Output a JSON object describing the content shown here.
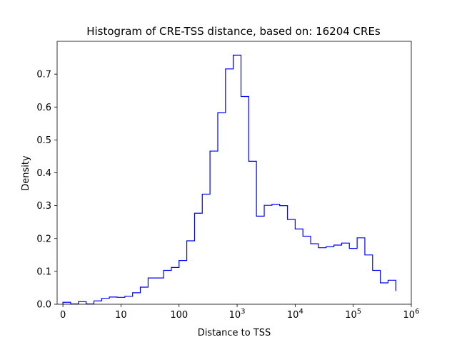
{
  "chart_data": {
    "type": "histogram",
    "title": "Histogram of CRE-TSS distance, based on: 16204 CREs",
    "xlabel": "Distance to TSS",
    "ylabel": "Density",
    "x_scale": "symlog",
    "xlim": [
      -0.1,
      6
    ],
    "ylim": [
      0,
      0.8
    ],
    "grid": false,
    "x_ticks": [
      {
        "label": "0",
        "base": "",
        "exp": ""
      },
      {
        "label": "10",
        "base": "",
        "exp": ""
      },
      {
        "label": "100",
        "base": "",
        "exp": ""
      },
      {
        "label": "",
        "base": "10",
        "exp": "3"
      },
      {
        "label": "",
        "base": "10",
        "exp": "4"
      },
      {
        "label": "",
        "base": "10",
        "exp": "5"
      },
      {
        "label": "",
        "base": "10",
        "exp": "6"
      }
    ],
    "y_ticks": [
      "0.0",
      "0.1",
      "0.2",
      "0.3",
      "0.4",
      "0.5",
      "0.6",
      "0.7"
    ],
    "series": [
      {
        "color": "#0000ff",
        "bin_edges_log10": [
          0.0,
          0.133,
          0.267,
          0.4,
          0.533,
          0.667,
          0.8,
          0.933,
          1.067,
          1.2,
          1.333,
          1.467,
          1.6,
          1.733,
          1.867,
          2.0,
          2.133,
          2.267,
          2.4,
          2.533,
          2.667,
          2.8,
          2.933,
          3.067,
          3.2,
          3.333,
          3.467,
          3.6,
          3.733,
          3.867,
          4.0,
          4.133,
          4.267,
          4.4,
          4.533,
          4.667,
          4.8,
          4.933,
          5.067,
          5.2,
          5.333,
          5.467,
          5.6,
          5.733
        ],
        "density": [
          0.006,
          0.001,
          0.008,
          0.001,
          0.01,
          0.018,
          0.022,
          0.021,
          0.024,
          0.035,
          0.052,
          0.08,
          0.08,
          0.103,
          0.112,
          0.133,
          0.193,
          0.277,
          0.335,
          0.466,
          0.583,
          0.716,
          0.758,
          0.632,
          0.435,
          0.268,
          0.301,
          0.304,
          0.3,
          0.258,
          0.229,
          0.207,
          0.184,
          0.172,
          0.175,
          0.18,
          0.186,
          0.17,
          0.202,
          0.15,
          0.103,
          0.065,
          0.073,
          0.04
        ]
      }
    ]
  }
}
